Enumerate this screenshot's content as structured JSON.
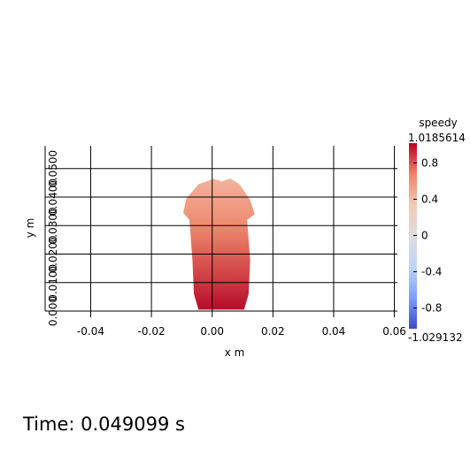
{
  "chart_data": {
    "type": "heatmap",
    "title": "",
    "xlabel": "x m",
    "ylabel": "y m",
    "xlim": [
      -0.055,
      0.061
    ],
    "ylim": [
      0.0,
      0.058
    ],
    "x_ticks": [
      -0.04,
      -0.02,
      0.0,
      0.02,
      0.04,
      0.06
    ],
    "x_tick_labels": [
      "-0.04",
      "-0.02",
      "0.00",
      "0.02",
      "0.04",
      "0.06"
    ],
    "y_ticks": [
      0.0,
      0.01,
      0.02,
      0.03,
      0.04,
      0.05
    ],
    "y_tick_labels": [
      "0.000",
      "0.0100",
      "0.0200",
      "0.0300",
      "0.0400",
      "0.0500"
    ],
    "grid": true,
    "colorbar": {
      "title": "speedy",
      "max_label": "1.0185614",
      "min_label": "-1.029132",
      "range": [
        -1.029132,
        1.0185614
      ],
      "tick_values": [
        0.8,
        0.4,
        0.0,
        -0.4,
        -0.8
      ],
      "tick_labels": [
        "0.8",
        "0.4",
        "0",
        "-0.4",
        "-0.8"
      ],
      "colormap": [
        "#3b4cc0",
        "#7b9ff9",
        "#c0d4f5",
        "#dddddd",
        "#f2cbb7",
        "#ee8468",
        "#b40426"
      ],
      "placement": "right"
    },
    "field": {
      "description_values": "speedy ranges from ~0.45 at the top of the blob to ~1.0 at the bottom",
      "outline_points": [
        [
          -0.0045,
          0.0005
        ],
        [
          -0.006,
          0.006
        ],
        [
          -0.0065,
          0.018
        ],
        [
          -0.0075,
          0.032
        ],
        [
          -0.0095,
          0.0345
        ],
        [
          -0.0085,
          0.0395
        ],
        [
          -0.0045,
          0.0445
        ],
        [
          0.0005,
          0.0465
        ],
        [
          0.003,
          0.0455
        ],
        [
          0.006,
          0.0465
        ],
        [
          0.009,
          0.0445
        ],
        [
          0.0125,
          0.039
        ],
        [
          0.014,
          0.034
        ],
        [
          0.0115,
          0.032
        ],
        [
          0.0125,
          0.018
        ],
        [
          0.012,
          0.006
        ],
        [
          0.0105,
          0.0005
        ]
      ],
      "value_top": 0.45,
      "value_bottom": 1.0
    }
  },
  "time_label": "Time: 0.049099 s"
}
